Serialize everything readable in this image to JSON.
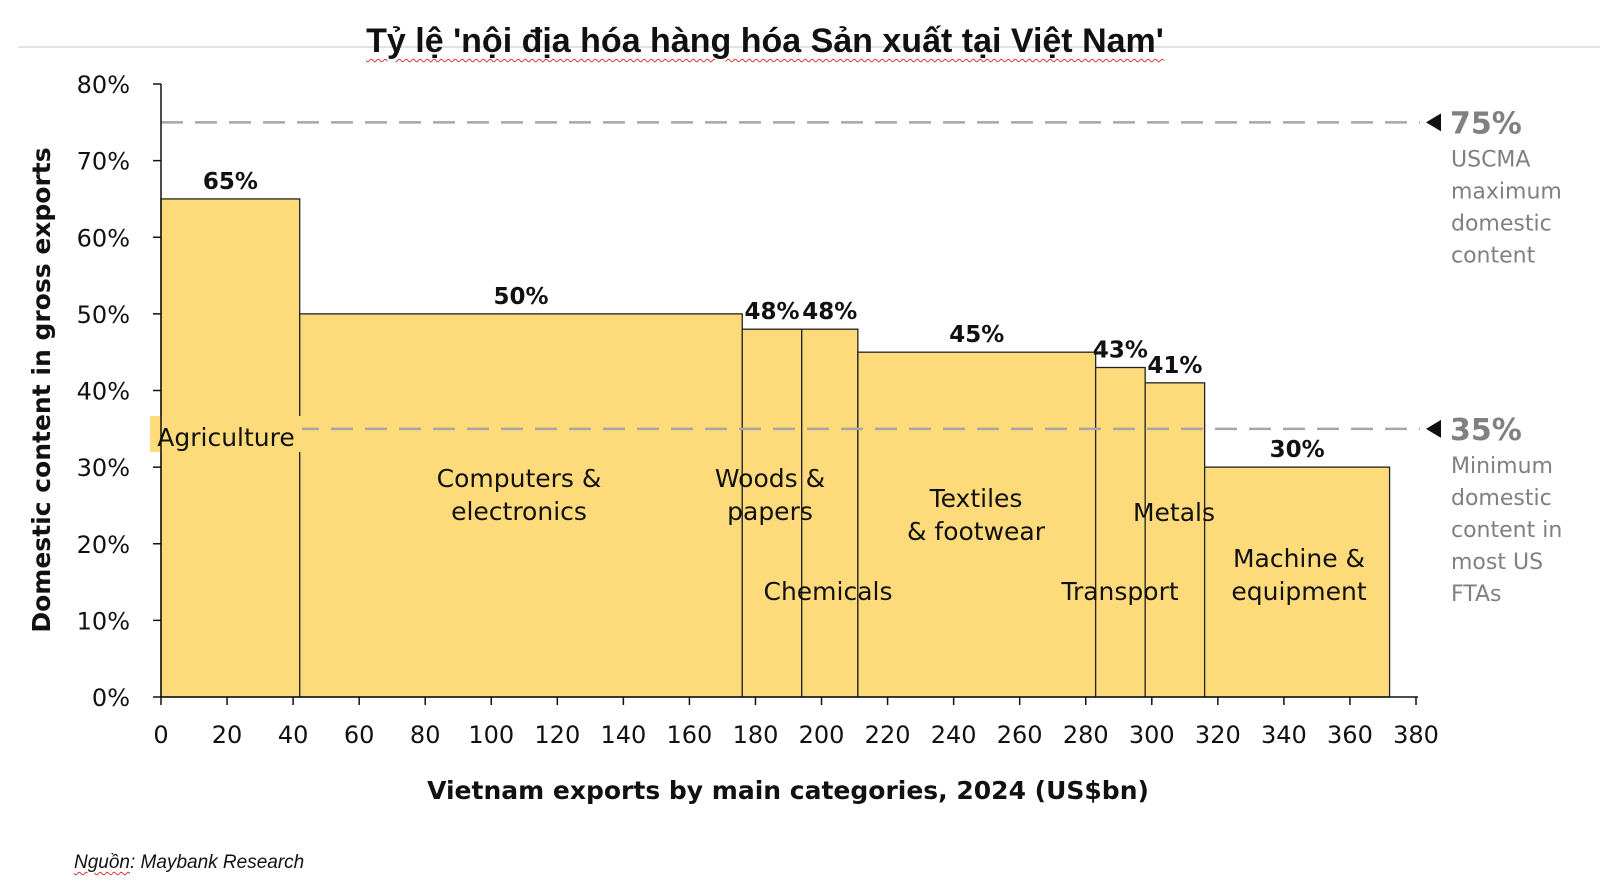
{
  "title": "Tỷ lệ 'nội địa hóa hàng hóa Sản xuất tại Việt Nam'",
  "source": {
    "label": "Nguồn",
    "text": ": Maybank Research"
  },
  "colors": {
    "bar_fill": "#FDDB7A",
    "bar_stroke": "#222222",
    "ref_line": "#a6a6a6",
    "ref_text": "#808080",
    "label_bg": "#FDDB7A"
  },
  "chart_data": {
    "type": "bar",
    "subtype": "variable-width (marimekko) bar",
    "xlabel": "Vietnam exports by main categories, 2024 (US$bn)",
    "ylabel": "Domestic content in gross exports",
    "xlim": [
      0,
      380
    ],
    "ylim": [
      0,
      80
    ],
    "x_ticks": [
      "0",
      "20",
      "40",
      "60",
      "80",
      "100",
      "120",
      "140",
      "160",
      "180",
      "200",
      "220",
      "240",
      "260",
      "280",
      "300",
      "320",
      "340",
      "360",
      "380"
    ],
    "y_ticks": [
      "0%",
      "10%",
      "20%",
      "30%",
      "40%",
      "50%",
      "60%",
      "70%",
      "80%"
    ],
    "grid": false,
    "categories": [
      "Agriculture",
      "Computers & electronics",
      "Woods & papers",
      "Chemicals",
      "Textiles & footwear",
      "Transport",
      "Metals",
      "Machine & equipment"
    ],
    "bars": [
      {
        "category": "Agriculture",
        "category_lines": [
          "Agriculture"
        ],
        "x_start": 0,
        "x_end": 42,
        "value": 65,
        "value_label": "65%"
      },
      {
        "category": "Computers & electronics",
        "category_lines": [
          "Computers &",
          "electronics"
        ],
        "x_start": 42,
        "x_end": 176,
        "value": 50,
        "value_label": "50%"
      },
      {
        "category": "Woods & papers",
        "category_lines": [
          "Woods &",
          "papers"
        ],
        "x_start": 176,
        "x_end": 194,
        "value": 48,
        "value_label": "48%"
      },
      {
        "category": "Chemicals",
        "category_lines": [
          "Chemicals"
        ],
        "x_start": 194,
        "x_end": 211,
        "value": 48,
        "value_label": "48%"
      },
      {
        "category": "Textiles & footwear",
        "category_lines": [
          "Textiles",
          "& footwear"
        ],
        "x_start": 211,
        "x_end": 283,
        "value": 45,
        "value_label": "45%"
      },
      {
        "category": "Transport",
        "category_lines": [
          "Transport"
        ],
        "x_start": 283,
        "x_end": 298,
        "value": 43,
        "value_label": "43%"
      },
      {
        "category": "Metals",
        "category_lines": [
          "Metals"
        ],
        "x_start": 298,
        "x_end": 316,
        "value": 41,
        "value_label": "41%"
      },
      {
        "category": "Machine & equipment",
        "category_lines": [
          "Machine &",
          "equipment"
        ],
        "x_start": 316,
        "x_end": 372,
        "value": 30,
        "value_label": "30%"
      }
    ],
    "reference_lines": [
      {
        "value": 75,
        "label": "75%",
        "note_lines": [
          "USCMA",
          "maximum",
          "domestic",
          "content"
        ]
      },
      {
        "value": 35,
        "label": "35%",
        "note_lines": [
          "Minimum",
          "domestic",
          "content in",
          "most US",
          "FTAs"
        ]
      }
    ]
  }
}
